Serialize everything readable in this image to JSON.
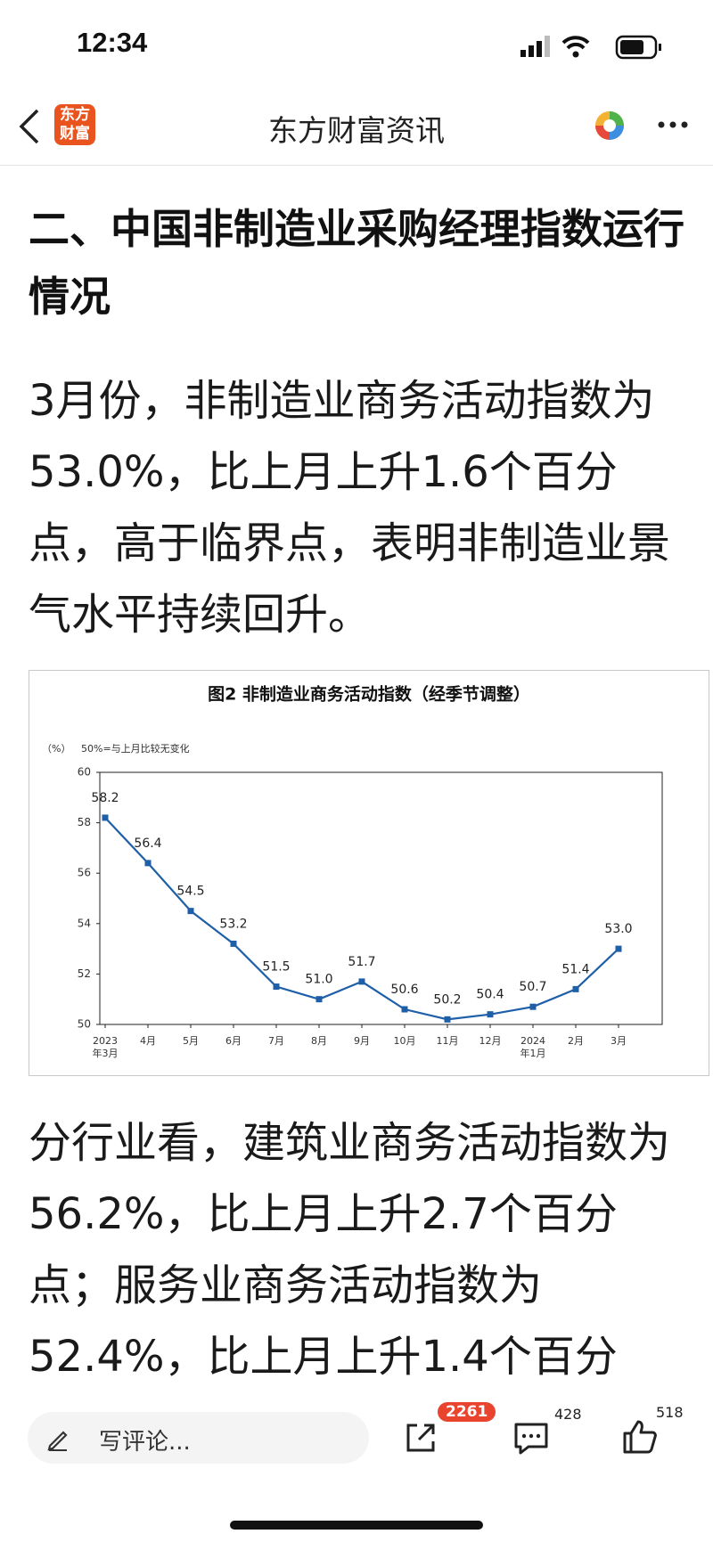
{
  "status_bar": {
    "time": "12:34"
  },
  "header": {
    "logo": [
      "东方",
      "财富"
    ],
    "title": "东方财富资讯"
  },
  "article": {
    "heading": "二、中国非制造业采购经理指数运行情况",
    "paragraphs": [
      "3月份，非制造业商务活动指数为53.0%，比上月上升1.6个百分点，高于临界点，表明非制造业景气水平持续回升。",
      "分行业看，建筑业商务活动指数为56.2%，比上月上升2.7个百分点；服务业商务活动指数为52.4%，比上月上升1.4个百分点。从行业看，邮"
    ]
  },
  "chart_data": {
    "type": "line",
    "title": "图2  非制造业商务活动指数（经季节调整）",
    "y_unit": "（%）",
    "note": "50%=与上月比较无变化",
    "categories": [
      "2023年3月",
      "4月",
      "5月",
      "6月",
      "7月",
      "8月",
      "9月",
      "10月",
      "11月",
      "12月",
      "2024年1月",
      "2月",
      "3月"
    ],
    "series": [
      {
        "color": "#1f5fa8",
        "values": [
          58.2,
          56.4,
          54.5,
          53.2,
          51.5,
          51.0,
          51.7,
          50.6,
          50.2,
          50.4,
          50.7,
          51.4,
          53.0
        ],
        "value_labels": [
          "58.2",
          "56.4",
          "54.5",
          "53.2",
          "51.5",
          "51.0",
          "51.7",
          "50.6",
          "50.2",
          "50.4",
          "50.7",
          "51.4",
          "53.0"
        ]
      }
    ],
    "ylim": [
      50,
      60
    ],
    "yticks": [
      50,
      52,
      54,
      56,
      58,
      60
    ]
  },
  "bottom_bar": {
    "comment_placeholder": "写评论...",
    "share_count": "2261",
    "comment_count": "428",
    "like_count": "518"
  }
}
